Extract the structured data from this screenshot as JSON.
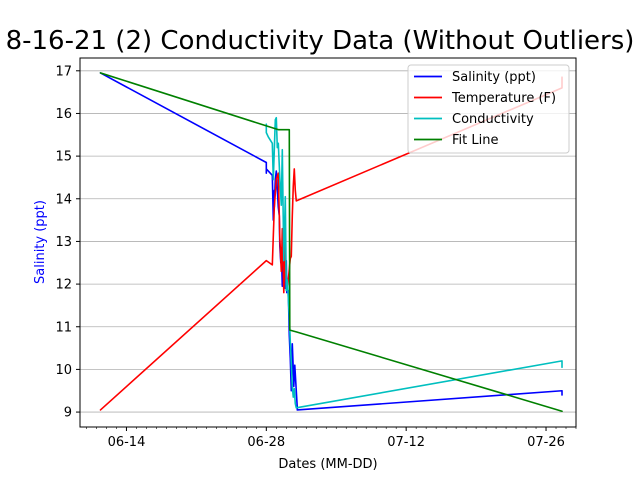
{
  "chart_data": {
    "type": "line",
    "title": "8-16-21 (2) Conductivity Data (Without Outliers)",
    "xlabel": "Dates (MM-DD)",
    "ylabel": "Salinity (ppt)",
    "ylabel_color": "#0000ff",
    "x_is_date": true,
    "x_tick_labels": [
      "06-14",
      "06-28",
      "07-12",
      "07-26"
    ],
    "x_tick_days": [
      14,
      28,
      42,
      56
    ],
    "xlim": [
      9.35,
      59.0
    ],
    "y_ticks": [
      9,
      10,
      11,
      12,
      13,
      14,
      15,
      16,
      17
    ],
    "ylim": [
      8.65,
      17.3
    ],
    "grid": "y-major",
    "legend_position": "top-right",
    "series": [
      {
        "name": "Salinity (ppt)",
        "color": "#0000ff",
        "x": [
          11.4,
          28.0,
          28.0,
          28.0,
          28.6,
          28.7,
          28.8,
          28.8,
          28.9,
          29.0,
          29.2,
          29.3,
          29.35,
          29.45,
          29.5,
          29.6,
          29.7,
          29.75,
          29.8,
          29.9,
          30.0,
          30.05,
          30.2,
          30.3,
          30.4,
          30.5,
          30.55,
          30.6,
          30.7,
          30.75,
          30.85,
          30.9,
          31.0,
          31.1,
          31.1,
          57.6,
          57.6
        ],
        "y": [
          16.95,
          14.85,
          14.6,
          14.7,
          14.55,
          13.5,
          14.2,
          13.8,
          14.45,
          14.65,
          13.8,
          13.6,
          12.9,
          12.5,
          12.85,
          11.95,
          12.7,
          12.3,
          13.0,
          11.9,
          12.55,
          11.8,
          11.85,
          10.8,
          10.25,
          9.5,
          9.85,
          10.6,
          10.0,
          9.6,
          10.1,
          9.9,
          9.5,
          9.1,
          9.05,
          9.5,
          9.4
        ]
      },
      {
        "name": "Temperature (F)",
        "color": "#ff0000",
        "x": [
          11.4,
          28.0,
          28.6,
          28.8,
          29.0,
          29.2,
          29.35,
          29.5,
          29.6,
          29.75,
          29.9,
          30.0,
          30.1,
          30.3,
          30.4,
          30.5,
          30.6,
          30.7,
          30.8,
          30.9,
          31.0,
          57.6,
          57.6
        ],
        "y": [
          9.05,
          12.55,
          12.45,
          13.8,
          14.45,
          14.6,
          13.1,
          12.3,
          13.3,
          11.8,
          12.9,
          11.9,
          11.85,
          12.35,
          12.6,
          12.65,
          13.6,
          14.3,
          14.7,
          14.2,
          13.95,
          16.6,
          16.85
        ]
      },
      {
        "name": "Conductivity",
        "color": "#00bfbf",
        "x": [
          28.0,
          28.0,
          28.2,
          28.6,
          28.7,
          28.9,
          29.0,
          29.1,
          29.2,
          29.35,
          29.5,
          29.6,
          29.75,
          29.9,
          30.0,
          30.1,
          30.3,
          30.4,
          30.5,
          30.6,
          30.7,
          30.8,
          30.9,
          31.0,
          57.6,
          57.6
        ],
        "y": [
          15.75,
          15.55,
          15.45,
          15.3,
          14.45,
          15.85,
          15.9,
          15.2,
          15.3,
          14.5,
          13.85,
          15.15,
          12.55,
          14.05,
          11.85,
          12.1,
          11.25,
          10.65,
          10.15,
          9.6,
          9.35,
          9.55,
          9.2,
          9.1,
          10.2,
          10.05
        ]
      },
      {
        "name": "Fit Line",
        "color": "#008000",
        "x": [
          11.4,
          29.2,
          30.3,
          30.35,
          31.0,
          57.6
        ],
        "y": [
          16.95,
          15.62,
          15.62,
          10.92,
          10.88,
          9.02
        ]
      }
    ]
  }
}
